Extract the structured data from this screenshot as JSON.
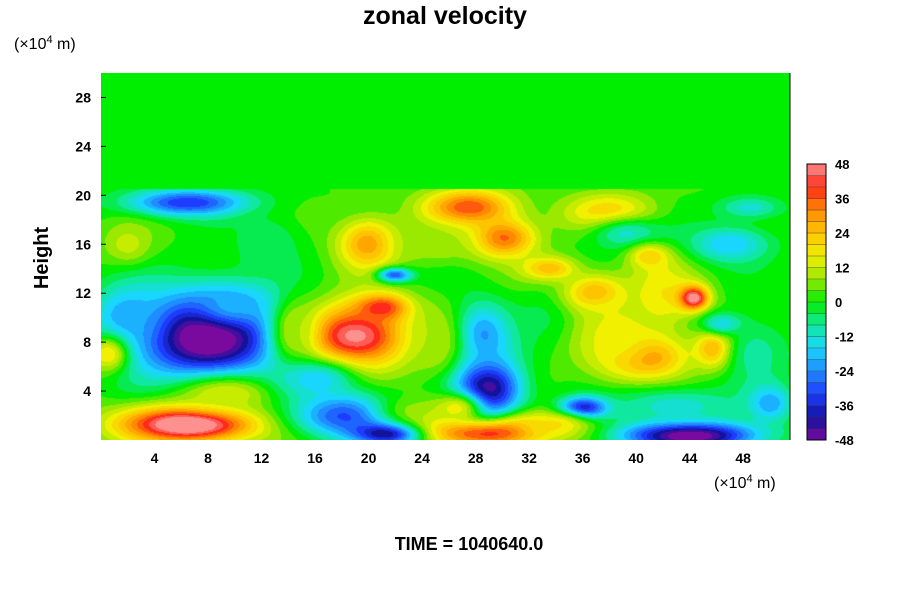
{
  "chart_data": {
    "type": "heatmap",
    "title": "zonal velocity",
    "ylabel": "Height",
    "y_unit": {
      "prefix": "(×10",
      "exp": "4",
      "suffix": " m)"
    },
    "x_unit": {
      "prefix": "(×10",
      "exp": "4",
      "suffix": " m)"
    },
    "xlim": [
      0,
      51.5
    ],
    "ylim": [
      0,
      30
    ],
    "x_ticks": [
      4,
      8,
      12,
      16,
      20,
      24,
      28,
      32,
      36,
      40,
      44,
      48
    ],
    "y_ticks": [
      4,
      8,
      12,
      16,
      20,
      24,
      28
    ],
    "colorbar": {
      "range": [
        -48,
        48
      ],
      "tick_labels": [
        "48",
        "36",
        "24",
        "12",
        "0",
        "-12",
        "-24",
        "-36",
        "-48"
      ],
      "tick_values": [
        48,
        36,
        24,
        12,
        0,
        -12,
        -24,
        -36,
        -48
      ],
      "colors_bottom_to_top": [
        "#7a0a9e",
        "#12129e",
        "#1e3cff",
        "#1f8cff",
        "#19d6ff",
        "#10e8a0",
        "#00ee00",
        "#9be800",
        "#f0f000",
        "#ffc400",
        "#ff8a00",
        "#ff2a1a",
        "#ff9090"
      ]
    },
    "field": {
      "background": 2,
      "upper_layer": {
        "y_from": 20.5,
        "value": 0
      },
      "blobs": [
        {
          "x": 8,
          "y": 8.5,
          "rx": 5.5,
          "ry": 3.6,
          "value": -56
        },
        {
          "x": 10,
          "y": 11,
          "rx": 3,
          "ry": 1.6,
          "value": -20
        },
        {
          "x": 2,
          "y": 10,
          "rx": 2.5,
          "ry": 2.5,
          "value": -22
        },
        {
          "x": 6.5,
          "y": 19.4,
          "rx": 4.5,
          "ry": 1.1,
          "value": -34
        },
        {
          "x": 2,
          "y": 16,
          "rx": 1.8,
          "ry": 1.6,
          "value": 12
        },
        {
          "x": 0.5,
          "y": 7,
          "rx": 1.5,
          "ry": 1.5,
          "value": 18
        },
        {
          "x": 6.5,
          "y": 1.3,
          "rx": 5,
          "ry": 1.5,
          "value": 58
        },
        {
          "x": 9.5,
          "y": 3.8,
          "rx": 4,
          "ry": 1.5,
          "value": 14
        },
        {
          "x": 19,
          "y": 8.5,
          "rx": 4,
          "ry": 2.6,
          "value": 48
        },
        {
          "x": 21,
          "y": 10.8,
          "rx": 2,
          "ry": 1.1,
          "value": 42
        },
        {
          "x": 14.5,
          "y": 9,
          "rx": 1.6,
          "ry": 2.6,
          "value": 10
        },
        {
          "x": 16,
          "y": 5,
          "rx": 3,
          "ry": 1.5,
          "value": -16
        },
        {
          "x": 18.5,
          "y": 2,
          "rx": 4,
          "ry": 1.8,
          "value": -32
        },
        {
          "x": 21.5,
          "y": 0.6,
          "rx": 2.5,
          "ry": 0.9,
          "value": -50
        },
        {
          "x": 23.5,
          "y": 2.5,
          "rx": 3,
          "ry": 1.5,
          "value": 6
        },
        {
          "x": 29,
          "y": 0.8,
          "rx": 4,
          "ry": 1.3,
          "value": 56
        },
        {
          "x": 28.8,
          "y": 4.2,
          "rx": 2.6,
          "ry": 2.6,
          "value": -48
        },
        {
          "x": 28.5,
          "y": 8.6,
          "rx": 2.3,
          "ry": 2.6,
          "value": -24
        },
        {
          "x": 26.5,
          "y": 2.6,
          "rx": 2,
          "ry": 1.3,
          "value": 16
        },
        {
          "x": 20,
          "y": 16,
          "rx": 2.3,
          "ry": 2.1,
          "value": 30
        },
        {
          "x": 22,
          "y": 13.5,
          "rx": 1.3,
          "ry": 0.6,
          "value": -30
        },
        {
          "x": 27.5,
          "y": 19,
          "rx": 3.3,
          "ry": 1.5,
          "value": 38
        },
        {
          "x": 30,
          "y": 16.5,
          "rx": 2.5,
          "ry": 1.6,
          "value": 36
        },
        {
          "x": 25,
          "y": 16,
          "rx": 3,
          "ry": 1.5,
          "value": 10
        },
        {
          "x": 33.5,
          "y": 14,
          "rx": 2,
          "ry": 1,
          "value": 26
        },
        {
          "x": 33.5,
          "y": 10,
          "rx": 2.5,
          "ry": 2.2,
          "value": -4
        },
        {
          "x": 36.2,
          "y": 2.6,
          "rx": 1.8,
          "ry": 0.9,
          "value": -48
        },
        {
          "x": 34,
          "y": 1.2,
          "rx": 3,
          "ry": 1.1,
          "value": 20
        },
        {
          "x": 38,
          "y": 18.5,
          "rx": 3.3,
          "ry": 1.6,
          "value": 24
        },
        {
          "x": 39.5,
          "y": 16.8,
          "rx": 3,
          "ry": 1.4,
          "value": -12
        },
        {
          "x": 37,
          "y": 12,
          "rx": 2.3,
          "ry": 1.5,
          "value": 28
        },
        {
          "x": 42,
          "y": 12,
          "rx": 2.5,
          "ry": 3,
          "value": 18
        },
        {
          "x": 44.3,
          "y": 11.6,
          "rx": 1.1,
          "ry": 1,
          "value": 52
        },
        {
          "x": 40.5,
          "y": 6.8,
          "rx": 3,
          "ry": 1.8,
          "value": 36
        },
        {
          "x": 38.5,
          "y": 8.5,
          "rx": 3.2,
          "ry": 3.2,
          "value": 16
        },
        {
          "x": 46,
          "y": 7.5,
          "rx": 1.5,
          "ry": 1.6,
          "value": 34
        },
        {
          "x": 46.5,
          "y": 9.5,
          "rx": 1.6,
          "ry": 0.9,
          "value": -16
        },
        {
          "x": 49,
          "y": 7,
          "rx": 2.5,
          "ry": 3,
          "value": -8
        },
        {
          "x": 44,
          "y": 0.4,
          "rx": 5,
          "ry": 1.2,
          "value": -54
        },
        {
          "x": 43,
          "y": 2.8,
          "rx": 5,
          "ry": 1.5,
          "value": -12
        },
        {
          "x": 47,
          "y": 16,
          "rx": 3,
          "ry": 1.5,
          "value": -18
        },
        {
          "x": 48.5,
          "y": 19,
          "rx": 2.5,
          "ry": 1,
          "value": -12
        },
        {
          "x": 50,
          "y": 3,
          "rx": 1.6,
          "ry": 1.5,
          "value": -22
        },
        {
          "x": 41,
          "y": 15,
          "rx": 1.5,
          "ry": 1,
          "value": 22
        },
        {
          "x": 25,
          "y": 8,
          "rx": 2,
          "ry": 3,
          "value": 10
        },
        {
          "x": 12.5,
          "y": 16,
          "rx": 2.5,
          "ry": 2.5,
          "value": -6
        }
      ]
    }
  },
  "footer": {
    "time_label": "TIME = 1040640.0"
  }
}
